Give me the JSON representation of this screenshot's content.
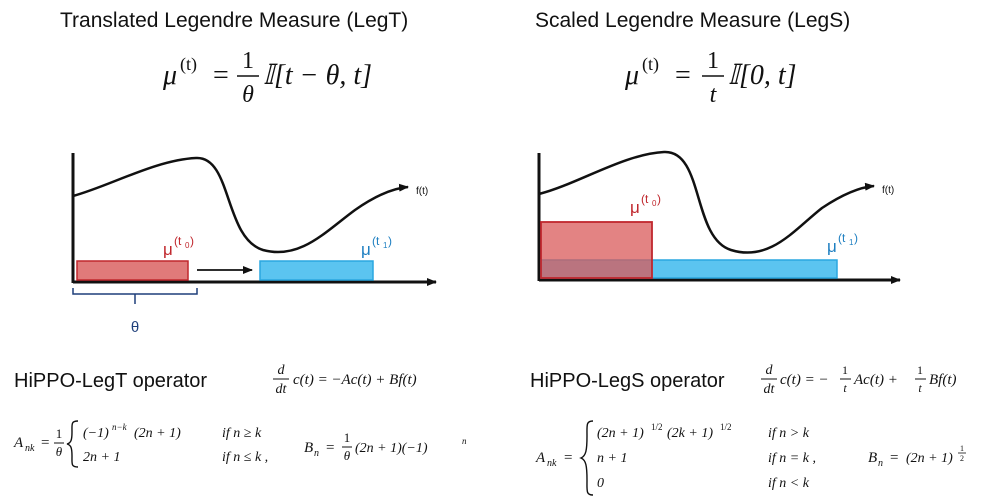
{
  "left": {
    "title": "Translated Legendre Measure (LegT)",
    "measure": {
      "mu": "μ",
      "sup": "(t)",
      "eq": "=",
      "num": "1",
      "den": "θ",
      "rhs": "𝕀[t − θ, t]"
    },
    "diagram": {
      "fn_label": "f(t)",
      "mu": "μ",
      "t0_label": "(t",
      "t0_sub": "0",
      "t1_label": "(t",
      "t1_sub": "1",
      "close": ")",
      "theta": "θ"
    },
    "operator": {
      "name": "HiPPO-LegT operator",
      "ode": {
        "d": "d",
        "dt": "dt",
        "rest": "c(t) = −Ac(t) + Bf(t)"
      },
      "A": {
        "lhs": "A",
        "lhs_sub": "nk",
        "eq": "=",
        "num": "1",
        "den": "θ",
        "cases": [
          {
            "expr": "(−1)",
            "expr_sup": "n−k",
            "expr2": "(2n + 1)",
            "cond": "if n ≥ k"
          },
          {
            "expr": "2n + 1",
            "expr_sup": "",
            "expr2": "",
            "cond": "if n ≤ k ,"
          }
        ]
      },
      "B": {
        "lhs": "B",
        "lhs_sub": "n",
        "eq": "=",
        "num": "1",
        "den": "θ",
        "rest": "(2n + 1)(−1)",
        "rest_sup": "n"
      }
    }
  },
  "right": {
    "title": "Scaled Legendre Measure (LegS)",
    "measure": {
      "mu": "μ",
      "sup": "(t)",
      "eq": "=",
      "num": "1",
      "den": "t",
      "rhs": "𝕀[0, t]"
    },
    "diagram": {
      "fn_label": "f(t)",
      "mu": "μ",
      "t0_label": "(t",
      "t0_sub": "0",
      "t1_label": "(t",
      "t1_sub": "1",
      "close": ")"
    },
    "operator": {
      "name": "HiPPO-LegS operator",
      "ode": {
        "d": "d",
        "dt": "dt",
        "mid1": "c(t) = −",
        "n1": "1",
        "d1": "t",
        "mid2": "Ac(t) +",
        "n2": "1",
        "d2": "t",
        "end": "Bf(t)"
      },
      "A": {
        "lhs": "A",
        "lhs_sub": "nk",
        "eq": "=",
        "cases": [
          {
            "expr": "(2n + 1)",
            "sup1": "1/2",
            "expr2": "(2k + 1)",
            "sup2": "1/2",
            "cond": "if n > k"
          },
          {
            "expr": "n + 1",
            "cond": "if n = k ,"
          },
          {
            "expr": "0",
            "cond": "if n < k"
          }
        ]
      },
      "B": {
        "lhs": "B",
        "lhs_sub": "n",
        "eq": "=",
        "rest": "(2n + 1)",
        "sup_num": "1",
        "sup_den": "2"
      }
    }
  },
  "colors": {
    "red_fill": "#e07a7a",
    "red_stroke": "#c0272d",
    "red_text": "#c0272d",
    "blue_fill": "#5bc4f0",
    "blue_stroke": "#2aa7e0",
    "blue_text": "#1e7fc1",
    "bracket": "#1f3f7a",
    "ink": "#111111"
  }
}
